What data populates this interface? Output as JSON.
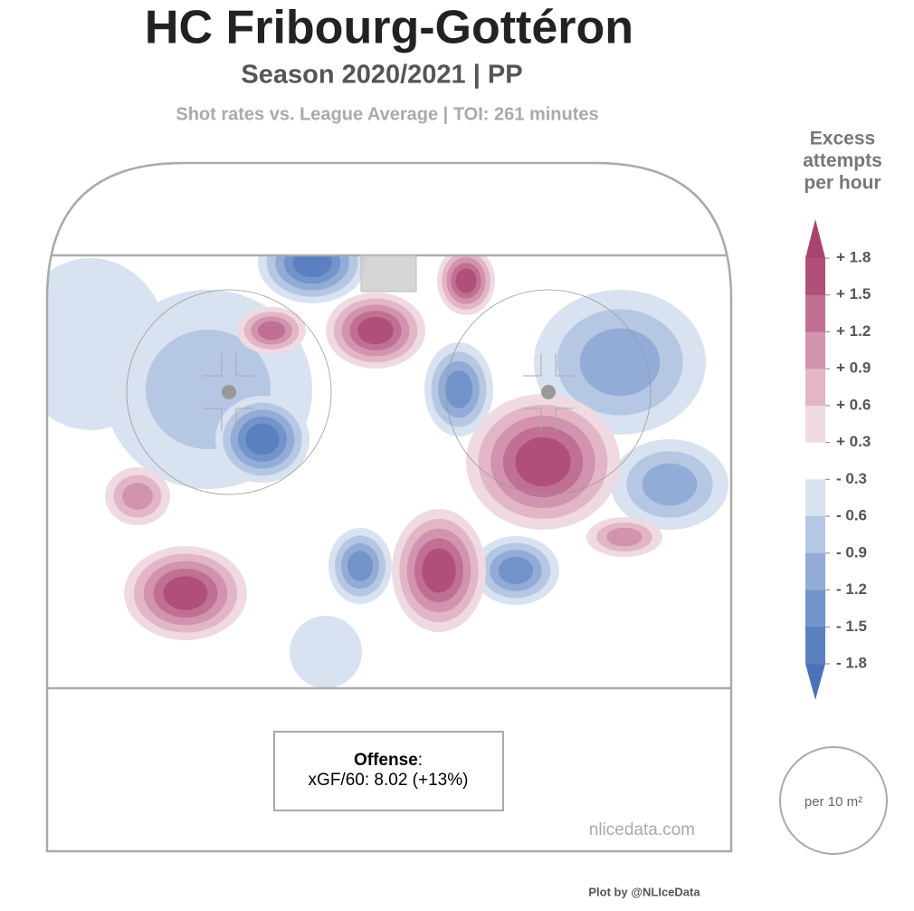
{
  "chart_data": {
    "type": "heatmap",
    "title": "HC Fribourg-Gottéron",
    "subtitle": "Season 2020/2021 | PP",
    "note": "Shot rates vs. League Average  | TOI: 261 minutes",
    "summary": {
      "label": "Offense",
      "text": "xGF/60: 8.02 (+13%)"
    },
    "source": "nlicedata.com",
    "unit": "per 10 m²",
    "credit": "Plot by @NLIceData",
    "colorbar": {
      "title": [
        "Excess",
        "attempts",
        "per hour"
      ],
      "ticks": [
        {
          "value": 1.8,
          "label": "+ 1.8"
        },
        {
          "value": 1.5,
          "label": "+ 1.5"
        },
        {
          "value": 1.2,
          "label": "+ 1.2"
        },
        {
          "value": 0.9,
          "label": "+ 0.9"
        },
        {
          "value": 0.6,
          "label": "+ 0.6"
        },
        {
          "value": 0.3,
          "label": "+ 0.3"
        },
        {
          "value": -0.3,
          "label": "- 0.3"
        },
        {
          "value": -0.6,
          "label": "- 0.6"
        },
        {
          "value": -0.9,
          "label": "- 0.9"
        },
        {
          "value": -1.2,
          "label": "- 1.2"
        },
        {
          "value": -1.5,
          "label": "- 1.5"
        },
        {
          "value": -1.8,
          "label": "- 1.8"
        }
      ],
      "colors": [
        "#4a72b8",
        "#5b80bf",
        "#7393cb",
        "#93acd7",
        "#b6c7e3",
        "#d8e2f0",
        "#ffffff",
        "#f0dae2",
        "#e2b6c7",
        "#d193ad",
        "#c07093",
        "#b04f78",
        "#a8456f"
      ]
    }
  }
}
